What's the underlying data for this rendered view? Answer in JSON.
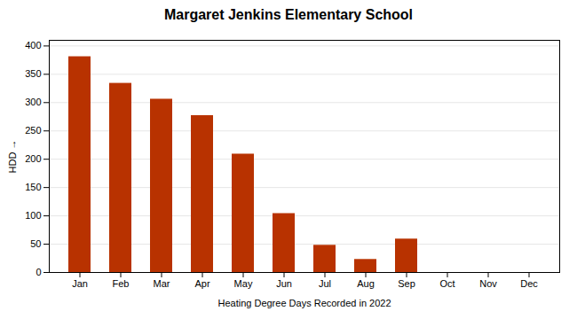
{
  "chart_data": {
    "type": "bar",
    "title": "Margaret Jenkins Elementary School",
    "xlabel": "Heating Degree Days Recorded in 2022",
    "ylabel": "HDD",
    "categories": [
      "Jan",
      "Feb",
      "Mar",
      "Apr",
      "May",
      "Jun",
      "Jul",
      "Aug",
      "Sep",
      "Oct",
      "Nov",
      "Dec"
    ],
    "values": [
      381,
      334,
      306,
      277,
      209,
      104,
      48,
      23,
      59,
      0,
      0,
      0
    ],
    "color": "#b83200",
    "ylim": [
      0,
      410
    ],
    "yticks": [
      0,
      50,
      100,
      150,
      200,
      250,
      300,
      350,
      400
    ],
    "grid": true
  }
}
